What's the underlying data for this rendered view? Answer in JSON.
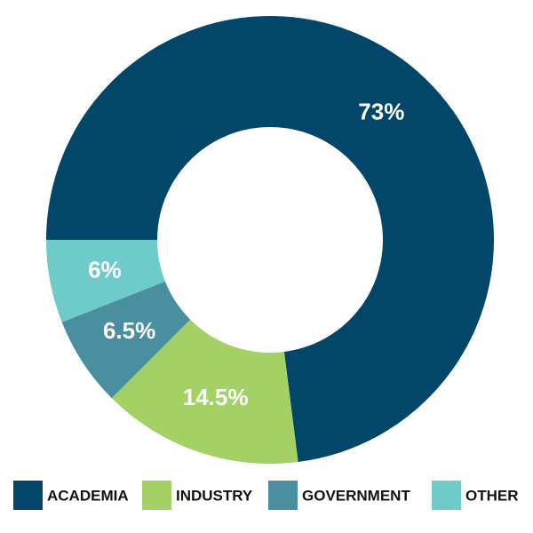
{
  "chart_data": {
    "type": "donut",
    "categories": [
      "ACADEMIA",
      "INDUSTRY",
      "GOVERNMENT",
      "OTHER"
    ],
    "values": [
      73,
      14.5,
      6.5,
      6
    ],
    "value_labels": [
      "73%",
      "14.5%",
      "6.5%",
      "6%"
    ],
    "colors": [
      "#02476a",
      "#a3d165",
      "#4a8fa0",
      "#6ecbc9"
    ]
  }
}
